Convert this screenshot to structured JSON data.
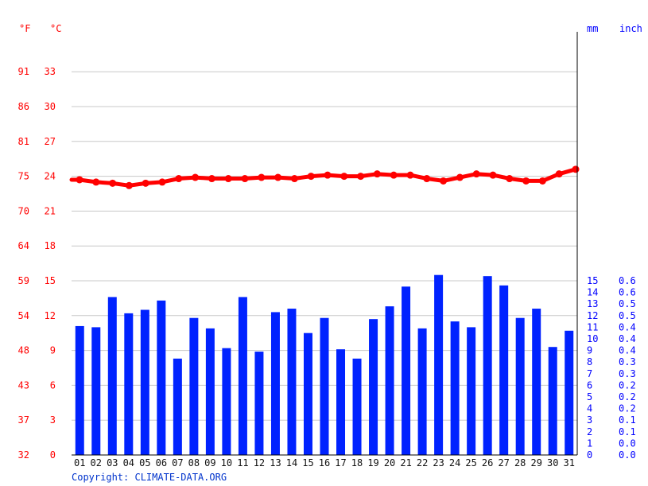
{
  "chart_data": {
    "type": "bar+line",
    "units": {
      "fahrenheit": "°F",
      "celsius": "°C",
      "mm": "mm",
      "inch": "inch"
    },
    "categories": [
      "01",
      "02",
      "03",
      "04",
      "05",
      "06",
      "07",
      "08",
      "09",
      "10",
      "11",
      "12",
      "13",
      "14",
      "15",
      "16",
      "17",
      "18",
      "19",
      "20",
      "21",
      "22",
      "23",
      "24",
      "25",
      "26",
      "27",
      "28",
      "29",
      "30",
      "31"
    ],
    "precipitation_mm": [
      11.1,
      11.0,
      13.6,
      12.2,
      12.5,
      13.3,
      8.3,
      11.8,
      10.9,
      9.2,
      13.6,
      8.9,
      12.3,
      12.6,
      10.5,
      11.8,
      9.1,
      8.3,
      11.7,
      12.8,
      14.5,
      10.9,
      15.5,
      11.5,
      11.0,
      15.4,
      14.6,
      11.8,
      12.6,
      9.3,
      10.7
    ],
    "temperature_c": [
      23.7,
      23.5,
      23.4,
      23.2,
      23.4,
      23.5,
      23.8,
      23.9,
      23.8,
      23.8,
      23.8,
      23.9,
      23.9,
      23.8,
      24.0,
      24.1,
      24.0,
      24.0,
      24.2,
      24.1,
      24.1,
      23.8,
      23.6,
      23.9,
      24.2,
      24.1,
      23.8,
      23.6,
      23.6,
      24.2,
      24.6
    ],
    "temp_axis": {
      "range_c": [
        0,
        37
      ],
      "ticks_c": [
        "0",
        "3",
        "6",
        "9",
        "12",
        "15",
        "18",
        "21",
        "24",
        "27",
        "30",
        "33"
      ],
      "ticks_f": [
        "32",
        "37",
        "43",
        "48",
        "54",
        "59",
        "64",
        "70",
        "75",
        "81",
        "86",
        "91"
      ]
    },
    "precip_axis": {
      "range_mm": [
        0,
        15
      ],
      "ticks_mm": [
        "0",
        "1",
        "2",
        "3",
        "4",
        "5",
        "6",
        "7",
        "8",
        "9",
        "10",
        "11",
        "12",
        "13",
        "14",
        "15"
      ],
      "ticks_inch": [
        "0.0",
        "0.0",
        "0.1",
        "0.1",
        "0.2",
        "0.2",
        "0.2",
        "0.3",
        "0.3",
        "0.4",
        "0.4",
        "0.4",
        "0.5",
        "0.5",
        "0.6",
        "0.6"
      ]
    },
    "grid": true,
    "colors": {
      "bars": "#0022ff",
      "line": "#ff0000",
      "temp_labels": "#ff0000",
      "precip_labels": "#0000ff"
    }
  },
  "copyright": "Copyright: CLIMATE-DATA.ORG"
}
